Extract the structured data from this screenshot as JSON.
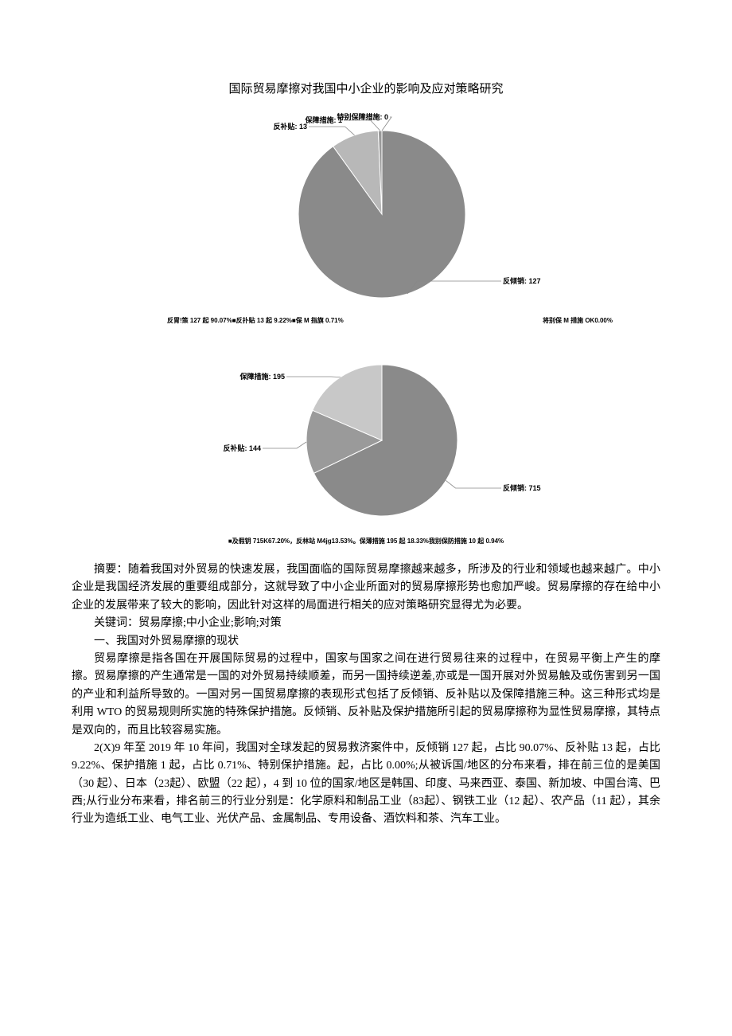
{
  "title": "国际贸易摩擦对我国中小企业的影响及应对策略研究",
  "chart1": {
    "type": "pie",
    "background_color": "#ffffff",
    "slices": [
      {
        "label": "反倾销",
        "value": 127,
        "color": "#8a8a8a",
        "label_text": "反倾销: 127"
      },
      {
        "label": "反补贴",
        "value": 13,
        "color": "#b8b8b8",
        "label_text": "反补贴: 13"
      },
      {
        "label": "保障措施",
        "value": 1,
        "color": "#9a9a9a",
        "label_text": "保障措施: 1"
      },
      {
        "label": "特别保障措施",
        "value": 0,
        "color": "#aaaaaa",
        "label_text": "特别保障措施: 0"
      }
    ],
    "radius": 105,
    "label_fontsize": 9,
    "caption_left": "反胃!策 127 起 90.07%■反扑贴 13 起 9.22%■保 M 指旗 0.71%",
    "caption_right": "将别保 M 措施 OK0.00%"
  },
  "chart2": {
    "type": "pie",
    "background_color": "#ffffff",
    "slices": [
      {
        "label": "反倾销",
        "value": 715,
        "color": "#8a8a8a",
        "label_text": "反倾销: 715"
      },
      {
        "label": "反补贴",
        "value": 144,
        "color": "#9a9a9a",
        "label_text": "反补贴: 144"
      },
      {
        "label": "保障措施",
        "value": 195,
        "color": "#c8c8c8",
        "label_text": "保障措施: 195"
      }
    ],
    "radius": 95,
    "label_fontsize": 9,
    "caption": "■及假钥 715K67.20%，反林站 M4jg13.53%。保薄措施 195 起 18.33%我别保防措施 10 起 0.94%"
  },
  "paragraphs": {
    "p1": "摘要：随着我国对外贸易的快速发展，我国面临的国际贸易摩擦越来越多，所涉及的行业和领域也越来越广。中小企业是我国经济发展的重要组成部分，这就导致了中小企业所面对的贸易摩擦形势也愈加严峻。贸易摩擦的存在给中小企业的发展带来了较大的影响，因此针对这样的局面进行相关的应对策略研究显得尤为必要。",
    "p2": "关键词：贸易摩擦;中小企业;影响;对策",
    "p3": "一、我国对外贸易摩擦的现状",
    "p4": "贸易摩擦是指各国在开展国际贸易的过程中，国家与国家之间在进行贸易往来的过程中，在贸易平衡上产生的摩擦。贸易摩擦的产生通常是一国的对外贸易持续顺差，而另一国持续逆差,亦或是一国开展对外贸易触及或伤害到另一国的产业和利益所导致的。一国对另一国贸易摩擦的表现形式包括了反倾销、反补贴以及保障措施三种。这三种形式均是利用 WTO 的贸易规则所实施的特殊保护措施。反倾销、反补贴及保护措施所引起的贸易摩擦称为显性贸易摩擦，其特点是双向的，而且比较容易实施。",
    "p5": "2(X)9 年至 2019 年 10 年间，我国对全球发起的贸易救济案件中，反倾销 127 起，占比 90.07%、反补贴 13 起，占比 9.22%、保护措施 1 起，占比 0.71%、特别保护措施。起，占比 0.00%;从被诉国/地区的分布来看，排在前三位的是美国（30 起）、日本（23起）、欧盟（22 起），4 到 10 位的国家/地区是韩国、印度、马来西亚、泰国、新加坡、中国台湾、巴西;从行业分布来看，排名前三的行业分别是：化学原料和制品工业（83起）、钢铁工业（12 起）、农产品（11 起），其余行业为造纸工业、电气工业、光伏产品、金属制品、专用设备、酒饮料和茶、汽车工业。"
  }
}
